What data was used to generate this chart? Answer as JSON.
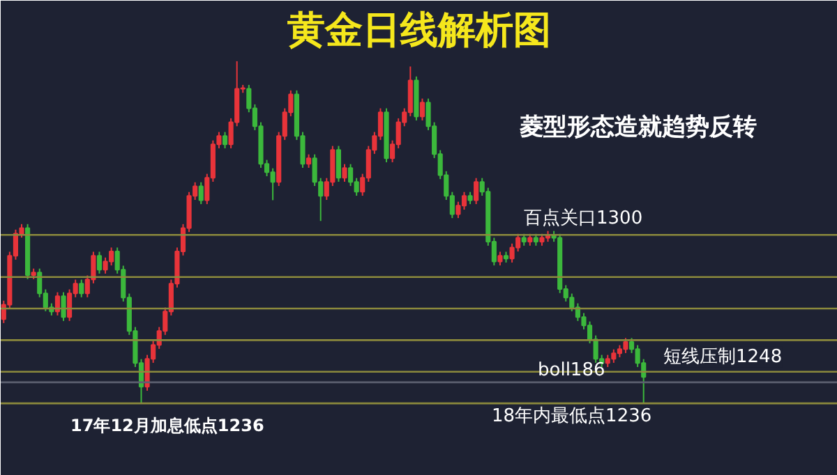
{
  "chart_data": {
    "type": "candlestick",
    "title": "黄金日线解析图",
    "categories": [
      null,
      null,
      null,
      null,
      null,
      null,
      null,
      null,
      null,
      null,
      null,
      null,
      null,
      null,
      null,
      null,
      null,
      null,
      null,
      null,
      null,
      null,
      null,
      null,
      null,
      null,
      null,
      null,
      null,
      null,
      null,
      null,
      null,
      null,
      null,
      null,
      null,
      null,
      null,
      null,
      null,
      null,
      null,
      null,
      null,
      null,
      null,
      null,
      null,
      null,
      null,
      null,
      null,
      null,
      null,
      null,
      null,
      null,
      null,
      null,
      null,
      null,
      null,
      null,
      null,
      null,
      null,
      null,
      null,
      null,
      null,
      null,
      null,
      null,
      null,
      null,
      null,
      null,
      null,
      null,
      null,
      null,
      null,
      null,
      null,
      null,
      null,
      null,
      null,
      null,
      null,
      null,
      null,
      null,
      null,
      null,
      null,
      null,
      null,
      null,
      null,
      null,
      null,
      null,
      null,
      null,
      null,
      null
    ],
    "ohlc": [
      [
        1268.0,
        1275.0,
        1266.5,
        1273.5
      ],
      [
        1273.5,
        1293.6,
        1272.0,
        1292.1
      ],
      [
        1292.1,
        1302.0,
        1290.6,
        1300.5
      ],
      [
        1300.5,
        1304.1,
        1299.0,
        1302.6
      ],
      [
        1302.6,
        1304.1,
        1283.2,
        1284.7
      ],
      [
        1284.7,
        1287.2,
        1283.2,
        1285.7
      ],
      [
        1285.7,
        1287.2,
        1276.3,
        1277.8
      ],
      [
        1277.8,
        1279.3,
        1271.0,
        1272.5
      ],
      [
        1272.5,
        1274.0,
        1269.4,
        1270.9
      ],
      [
        1270.9,
        1278.2,
        1269.4,
        1276.7
      ],
      [
        1276.7,
        1278.2,
        1267.3,
        1268.8
      ],
      [
        1268.8,
        1279.3,
        1267.3,
        1277.8
      ],
      [
        1277.8,
        1283.0,
        1276.3,
        1281.5
      ],
      [
        1281.5,
        1283.0,
        1276.3,
        1277.8
      ],
      [
        1277.8,
        1284.6,
        1276.3,
        1283.1
      ],
      [
        1283.1,
        1293.6,
        1281.6,
        1292.1
      ],
      [
        1292.1,
        1293.6,
        1285.3,
        1286.8
      ],
      [
        1286.8,
        1291.4,
        1285.3,
        1289.9
      ],
      [
        1289.9,
        1295.2,
        1288.4,
        1293.7
      ],
      [
        1293.7,
        1295.2,
        1285.3,
        1286.8
      ],
      [
        1286.8,
        1288.3,
        1274.7,
        1276.2
      ],
      [
        1276.2,
        1277.7,
        1262.0,
        1263.5
      ],
      [
        1263.5,
        1265.0,
        1249.8,
        1251.3
      ],
      [
        1251.3,
        1252.8,
        1236.0,
        1242.3
      ],
      [
        1242.3,
        1254.4,
        1240.8,
        1252.9
      ],
      [
        1252.9,
        1259.7,
        1251.4,
        1258.2
      ],
      [
        1258.2,
        1265.0,
        1256.7,
        1263.5
      ],
      [
        1263.5,
        1272.4,
        1262.0,
        1270.9
      ],
      [
        1270.9,
        1283.0,
        1269.4,
        1281.5
      ],
      [
        1281.5,
        1295.2,
        1280.0,
        1293.7
      ],
      [
        1293.7,
        1304.1,
        1292.2,
        1302.6
      ],
      [
        1302.6,
        1316.3,
        1301.1,
        1314.8
      ],
      [
        1314.8,
        1320.0,
        1313.3,
        1318.5
      ],
      [
        1318.5,
        1320.0,
        1311.7,
        1313.2
      ],
      [
        1313.2,
        1323.2,
        1311.7,
        1321.7
      ],
      [
        1321.7,
        1335.9,
        1320.2,
        1334.4
      ],
      [
        1334.4,
        1339.1,
        1332.9,
        1337.6
      ],
      [
        1337.6,
        1339.1,
        1332.9,
        1334.4
      ],
      [
        1334.4,
        1344.3,
        1332.9,
        1342.8
      ],
      [
        1342.8,
        1366.0,
        1341.3,
        1355.5
      ],
      [
        1355.5,
        1357.0,
        1354.0,
        1355.5
      ],
      [
        1355.5,
        1357.0,
        1346.6,
        1348.1
      ],
      [
        1348.1,
        1349.6,
        1339.8,
        1341.3
      ],
      [
        1341.3,
        1342.8,
        1325.5,
        1327.0
      ],
      [
        1327.0,
        1328.5,
        1322.3,
        1323.8
      ],
      [
        1323.8,
        1325.3,
        1313.2,
        1320.1
      ],
      [
        1320.1,
        1339.1,
        1318.6,
        1337.6
      ],
      [
        1337.6,
        1348.1,
        1336.1,
        1346.6
      ],
      [
        1346.6,
        1354.9,
        1345.1,
        1353.4
      ],
      [
        1353.4,
        1354.9,
        1336.1,
        1337.6
      ],
      [
        1337.6,
        1339.1,
        1325.5,
        1327.0
      ],
      [
        1327.0,
        1330.6,
        1325.5,
        1329.1
      ],
      [
        1329.1,
        1330.6,
        1318.6,
        1320.1
      ],
      [
        1320.1,
        1321.6,
        1305.3,
        1314.8
      ],
      [
        1314.8,
        1321.6,
        1313.3,
        1320.1
      ],
      [
        1320.1,
        1333.8,
        1318.6,
        1332.3
      ],
      [
        1332.3,
        1333.8,
        1320.2,
        1321.7
      ],
      [
        1321.7,
        1326.9,
        1320.2,
        1325.4
      ],
      [
        1325.4,
        1326.9,
        1318.6,
        1320.1
      ],
      [
        1320.1,
        1321.6,
        1314.9,
        1316.4
      ],
      [
        1316.4,
        1323.2,
        1314.9,
        1321.7
      ],
      [
        1321.7,
        1333.8,
        1320.2,
        1332.3
      ],
      [
        1332.3,
        1339.1,
        1330.8,
        1337.6
      ],
      [
        1337.6,
        1348.1,
        1336.1,
        1346.6
      ],
      [
        1346.6,
        1348.1,
        1327.6,
        1329.1
      ],
      [
        1329.1,
        1335.9,
        1327.6,
        1334.4
      ],
      [
        1334.4,
        1344.3,
        1332.9,
        1342.8
      ],
      [
        1342.8,
        1348.1,
        1341.3,
        1346.6
      ],
      [
        1346.6,
        1364.0,
        1345.1,
        1358.7
      ],
      [
        1358.7,
        1360.2,
        1343.5,
        1345.0
      ],
      [
        1345.0,
        1351.8,
        1343.5,
        1350.3
      ],
      [
        1350.3,
        1351.8,
        1339.8,
        1341.3
      ],
      [
        1341.3,
        1342.8,
        1329.2,
        1330.7
      ],
      [
        1330.7,
        1332.2,
        1321.2,
        1322.7
      ],
      [
        1322.7,
        1324.2,
        1313.3,
        1314.8
      ],
      [
        1314.8,
        1316.3,
        1306.4,
        1307.9
      ],
      [
        1307.9,
        1312.6,
        1306.4,
        1311.1
      ],
      [
        1311.1,
        1316.3,
        1309.6,
        1314.8
      ],
      [
        1314.8,
        1316.3,
        1311.7,
        1313.2
      ],
      [
        1313.2,
        1321.6,
        1311.7,
        1320.1
      ],
      [
        1320.1,
        1321.6,
        1314.9,
        1316.4
      ],
      [
        1316.4,
        1317.9,
        1295.9,
        1297.4
      ],
      [
        1297.4,
        1298.9,
        1288.4,
        1289.9
      ],
      [
        1289.9,
        1293.6,
        1288.4,
        1292.1
      ],
      [
        1292.1,
        1293.6,
        1289.5,
        1291.0
      ],
      [
        1291.0,
        1296.7,
        1289.5,
        1295.2
      ],
      [
        1295.2,
        1300.4,
        1293.7,
        1298.9
      ],
      [
        1298.9,
        1300.4,
        1295.9,
        1297.4
      ],
      [
        1297.4,
        1300.4,
        1295.9,
        1298.9
      ],
      [
        1298.9,
        1300.4,
        1295.9,
        1297.4
      ],
      [
        1297.4,
        1300.4,
        1295.9,
        1298.9
      ],
      [
        1298.9,
        1301.5,
        1297.4,
        1300.0
      ],
      [
        1300.0,
        1301.5,
        1297.4,
        1298.9
      ],
      [
        1298.9,
        1300.4,
        1277.9,
        1279.4
      ],
      [
        1279.4,
        1280.9,
        1274.7,
        1276.2
      ],
      [
        1276.2,
        1277.7,
        1271.0,
        1272.5
      ],
      [
        1272.5,
        1274.0,
        1267.3,
        1268.8
      ],
      [
        1268.8,
        1270.3,
        1264.1,
        1265.6
      ],
      [
        1265.6,
        1267.1,
        1258.8,
        1260.3
      ],
      [
        1260.3,
        1261.8,
        1251.4,
        1252.9
      ],
      [
        1252.9,
        1254.4,
        1249.8,
        1251.3
      ],
      [
        1251.3,
        1254.4,
        1249.8,
        1252.9
      ],
      [
        1252.9,
        1256.5,
        1251.4,
        1255.0
      ],
      [
        1255.0,
        1258.1,
        1253.5,
        1256.6
      ],
      [
        1256.6,
        1260.8,
        1255.1,
        1259.3
      ],
      [
        1259.3,
        1260.8,
        1255.1,
        1256.6
      ],
      [
        1256.6,
        1258.1,
        1249.8,
        1251.3
      ],
      [
        1251.3,
        1252.8,
        1236.0,
        1246.0
      ]
    ],
    "colors": [
      "#e8343a",
      "#e8343a",
      "#e8343a",
      "#e8343a",
      "#3cb83c",
      "#e8343a",
      "#3cb83c",
      "#3cb83c",
      "#3cb83c",
      "#e8343a",
      "#3cb83c",
      "#e8343a",
      "#e8343a",
      "#3cb83c",
      "#e8343a",
      "#e8343a",
      "#3cb83c",
      "#e8343a",
      "#e8343a",
      "#3cb83c",
      "#3cb83c",
      "#3cb83c",
      "#3cb83c",
      "#3cb83c",
      "#e8343a",
      "#e8343a",
      "#e8343a",
      "#e8343a",
      "#e8343a",
      "#e8343a",
      "#e8343a",
      "#e8343a",
      "#e8343a",
      "#3cb83c",
      "#e8343a",
      "#e8343a",
      "#e8343a",
      "#3cb83c",
      "#e8343a",
      "#e8343a",
      "#e8343a",
      "#3cb83c",
      "#3cb83c",
      "#3cb83c",
      "#3cb83c",
      "#3cb83c",
      "#e8343a",
      "#e8343a",
      "#e8343a",
      "#3cb83c",
      "#3cb83c",
      "#e8343a",
      "#3cb83c",
      "#3cb83c",
      "#e8343a",
      "#e8343a",
      "#3cb83c",
      "#e8343a",
      "#3cb83c",
      "#3cb83c",
      "#e8343a",
      "#e8343a",
      "#e8343a",
      "#e8343a",
      "#3cb83c",
      "#e8343a",
      "#e8343a",
      "#e8343a",
      "#e8343a",
      "#3cb83c",
      "#e8343a",
      "#3cb83c",
      "#3cb83c",
      "#3cb83c",
      "#3cb83c",
      "#3cb83c",
      "#e8343a",
      "#e8343a",
      "#3cb83c",
      "#e8343a",
      "#3cb83c",
      "#3cb83c",
      "#3cb83c",
      "#e8343a",
      "#3cb83c",
      "#e8343a",
      "#e8343a",
      "#3cb83c",
      "#e8343a",
      "#3cb83c",
      "#e8343a",
      "#e8343a",
      "#3cb83c",
      "#3cb83c",
      "#3cb83c",
      "#3cb83c",
      "#3cb83c",
      "#3cb83c",
      "#3cb83c",
      "#3cb83c",
      "#3cb83c",
      "#e8343a",
      "#e8343a",
      "#e8343a",
      "#e8343a",
      "#3cb83c",
      "#3cb83c",
      "#3cb83c"
    ],
    "ylim": [
      1208.5,
      1389
    ],
    "tick_labels": false,
    "grid": false,
    "ref_lines": [
      {
        "axis": "y",
        "value": 1300,
        "label": "百点关口1300",
        "color": "#8c8a3c"
      },
      {
        "axis": "y",
        "value": 1284,
        "color": "#8c8a3c"
      },
      {
        "axis": "y",
        "value": 1272,
        "color": "#8c8a3c"
      },
      {
        "axis": "y",
        "value": 1260,
        "color": "#8c8a3c"
      },
      {
        "axis": "y",
        "value": 1248,
        "label": "短线压制1248",
        "color": "#8c8a3c"
      },
      {
        "axis": "y",
        "value": 1244,
        "label": "boll186",
        "color": "#5c6070"
      },
      {
        "axis": "y",
        "value": 1236,
        "label": "18年内最低点1236",
        "color": "#8c8a3c"
      }
    ],
    "annotations": [
      "菱型形态造就趋势反转",
      {
        "text": "17年12月加息低点1236",
        "y": 1236
      }
    ]
  }
}
